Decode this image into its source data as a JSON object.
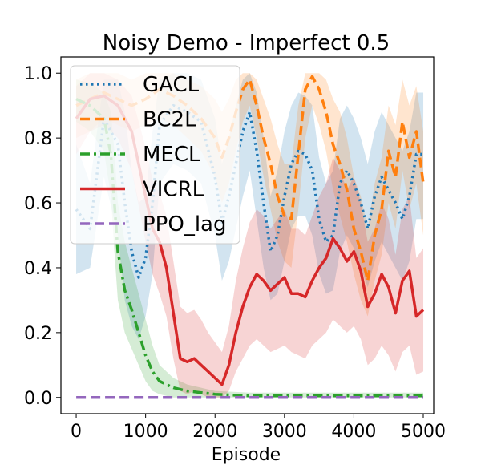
{
  "chart_data": {
    "type": "line",
    "title": "Noisy Demo - Imperfect 0.5",
    "xlabel": "Episode",
    "ylabel": "",
    "xlim": [
      -220,
      5150
    ],
    "ylim": [
      -0.05,
      1.05
    ],
    "xticks": [
      0,
      1000,
      2000,
      3000,
      4000,
      5000
    ],
    "yticks": [
      0.0,
      0.2,
      0.4,
      0.6,
      0.8,
      1.0
    ],
    "xtick_labels": [
      "0",
      "1000",
      "2000",
      "3000",
      "4000",
      "5000"
    ],
    "ytick_labels": [
      "0.0",
      "0.2",
      "0.4",
      "0.6",
      "0.8",
      "1.0"
    ],
    "grid": false,
    "legend_position": "top-left",
    "series": [
      {
        "name": "GACL",
        "color": "#1f77b4",
        "style": "dotted",
        "x": [
          0,
          200,
          400,
          600,
          700,
          800,
          900,
          1000,
          1100,
          1200,
          1400,
          1600,
          1800,
          2000,
          2100,
          2200,
          2300,
          2400,
          2500,
          2600,
          2700,
          2800,
          2900,
          3000,
          3100,
          3200,
          3300,
          3400,
          3500,
          3600,
          3700,
          3800,
          3900,
          4000,
          4100,
          4200,
          4300,
          4400,
          4500,
          4600,
          4700,
          4800,
          4900,
          5000
        ],
        "mean": [
          0.58,
          0.52,
          0.86,
          0.78,
          0.6,
          0.45,
          0.37,
          0.43,
          0.6,
          0.84,
          0.9,
          0.88,
          0.85,
          0.68,
          0.54,
          0.62,
          0.72,
          0.82,
          0.88,
          0.76,
          0.6,
          0.45,
          0.5,
          0.62,
          0.72,
          0.76,
          0.75,
          0.7,
          0.55,
          0.48,
          0.5,
          0.66,
          0.7,
          0.66,
          0.6,
          0.52,
          0.62,
          0.68,
          0.64,
          0.6,
          0.55,
          0.62,
          0.75,
          0.75
        ],
        "lower": [
          0.38,
          0.4,
          0.68,
          0.5,
          0.3,
          0.22,
          0.18,
          0.25,
          0.38,
          0.66,
          0.72,
          0.7,
          0.66,
          0.5,
          0.36,
          0.42,
          0.52,
          0.62,
          0.7,
          0.55,
          0.4,
          0.3,
          0.32,
          0.42,
          0.52,
          0.56,
          0.56,
          0.5,
          0.38,
          0.32,
          0.33,
          0.45,
          0.5,
          0.46,
          0.4,
          0.34,
          0.42,
          0.48,
          0.44,
          0.4,
          0.36,
          0.42,
          0.55,
          0.55
        ],
        "upper": [
          0.78,
          0.66,
          0.98,
          0.98,
          0.88,
          0.7,
          0.6,
          0.62,
          0.82,
          0.98,
          1.0,
          1.0,
          0.98,
          0.86,
          0.72,
          0.8,
          0.9,
          0.98,
          1.0,
          0.94,
          0.8,
          0.62,
          0.7,
          0.82,
          0.9,
          0.94,
          0.93,
          0.9,
          0.74,
          0.66,
          0.7,
          0.86,
          0.9,
          0.86,
          0.8,
          0.72,
          0.82,
          0.88,
          0.84,
          0.8,
          0.76,
          0.82,
          0.94,
          0.94
        ]
      },
      {
        "name": "BC2L",
        "color": "#ff7f0e",
        "style": "dashed",
        "x": [
          0,
          200,
          400,
          600,
          800,
          1000,
          1200,
          1400,
          1600,
          1800,
          2000,
          2100,
          2200,
          2300,
          2400,
          2500,
          2600,
          2700,
          2800,
          2900,
          3000,
          3100,
          3200,
          3300,
          3400,
          3500,
          3600,
          3700,
          3800,
          3900,
          4000,
          4100,
          4200,
          4300,
          4400,
          4500,
          4600,
          4700,
          4800,
          4900,
          5000
        ],
        "mean": [
          0.9,
          0.92,
          0.94,
          0.92,
          0.9,
          0.92,
          0.95,
          0.93,
          0.9,
          0.86,
          0.8,
          0.74,
          0.8,
          0.88,
          0.95,
          0.98,
          0.9,
          0.8,
          0.72,
          0.62,
          0.56,
          0.55,
          0.75,
          0.95,
          0.99,
          0.95,
          0.88,
          0.78,
          0.72,
          0.64,
          0.52,
          0.45,
          0.36,
          0.5,
          0.58,
          0.76,
          0.68,
          0.85,
          0.74,
          0.82,
          0.66
        ],
        "lower": [
          0.8,
          0.82,
          0.86,
          0.84,
          0.82,
          0.84,
          0.86,
          0.84,
          0.8,
          0.76,
          0.68,
          0.6,
          0.66,
          0.76,
          0.85,
          0.9,
          0.8,
          0.68,
          0.58,
          0.48,
          0.42,
          0.4,
          0.58,
          0.8,
          0.9,
          0.84,
          0.76,
          0.64,
          0.56,
          0.48,
          0.38,
          0.3,
          0.25,
          0.36,
          0.44,
          0.6,
          0.52,
          0.7,
          0.58,
          0.66,
          0.5
        ],
        "upper": [
          0.98,
          1.0,
          1.0,
          1.0,
          0.98,
          1.0,
          1.0,
          1.0,
          0.98,
          0.96,
          0.92,
          0.88,
          0.92,
          0.98,
          1.0,
          1.0,
          0.98,
          0.92,
          0.86,
          0.78,
          0.72,
          0.72,
          0.9,
          1.0,
          1.0,
          1.0,
          0.98,
          0.92,
          0.88,
          0.8,
          0.68,
          0.62,
          0.52,
          0.66,
          0.74,
          0.9,
          0.84,
          0.98,
          0.9,
          0.96,
          0.82
        ]
      },
      {
        "name": "MECL",
        "color": "#2ca02c",
        "style": "dashdot",
        "x": [
          0,
          200,
          400,
          500,
          550,
          600,
          700,
          800,
          900,
          1000,
          1100,
          1200,
          1300,
          1400,
          1600,
          1800,
          2000,
          2500,
          3000,
          3500,
          4000,
          4500,
          5000
        ],
        "mean": [
          0.92,
          0.9,
          0.86,
          0.75,
          0.6,
          0.45,
          0.33,
          0.27,
          0.2,
          0.13,
          0.08,
          0.05,
          0.04,
          0.03,
          0.02,
          0.015,
          0.01,
          0.005,
          0.005,
          0.005,
          0.005,
          0.005,
          0.005
        ],
        "lower": [
          0.85,
          0.82,
          0.76,
          0.62,
          0.45,
          0.3,
          0.2,
          0.15,
          0.1,
          0.05,
          0.02,
          0.01,
          0.005,
          0.0,
          0.0,
          0.0,
          0.0,
          0.0,
          0.0,
          0.0,
          0.0,
          0.0,
          0.0
        ],
        "upper": [
          0.98,
          0.97,
          0.94,
          0.88,
          0.76,
          0.6,
          0.48,
          0.4,
          0.32,
          0.24,
          0.16,
          0.1,
          0.08,
          0.06,
          0.04,
          0.03,
          0.02,
          0.015,
          0.015,
          0.015,
          0.015,
          0.015,
          0.015
        ]
      },
      {
        "name": "VICRL",
        "color": "#d62728",
        "style": "solid",
        "x": [
          0,
          200,
          400,
          600,
          800,
          1000,
          1100,
          1200,
          1300,
          1400,
          1500,
          1600,
          1700,
          1800,
          1900,
          2000,
          2100,
          2200,
          2300,
          2400,
          2500,
          2600,
          2700,
          2800,
          2900,
          3000,
          3100,
          3200,
          3300,
          3400,
          3500,
          3600,
          3700,
          3800,
          3900,
          4000,
          4100,
          4200,
          4300,
          4400,
          4500,
          4600,
          4700,
          4800,
          4900,
          5000
        ],
        "mean": [
          0.86,
          0.92,
          0.93,
          0.9,
          0.82,
          0.62,
          0.52,
          0.48,
          0.4,
          0.26,
          0.12,
          0.11,
          0.12,
          0.1,
          0.08,
          0.06,
          0.04,
          0.1,
          0.2,
          0.28,
          0.34,
          0.38,
          0.36,
          0.33,
          0.35,
          0.37,
          0.32,
          0.32,
          0.31,
          0.36,
          0.4,
          0.43,
          0.49,
          0.46,
          0.42,
          0.45,
          0.39,
          0.28,
          0.32,
          0.38,
          0.34,
          0.26,
          0.36,
          0.39,
          0.25,
          0.27
        ],
        "lower": [
          0.75,
          0.82,
          0.84,
          0.8,
          0.7,
          0.48,
          0.38,
          0.32,
          0.25,
          0.12,
          0.02,
          0.01,
          0.02,
          0.01,
          0.0,
          0.0,
          0.0,
          0.02,
          0.08,
          0.12,
          0.16,
          0.18,
          0.16,
          0.14,
          0.15,
          0.16,
          0.14,
          0.13,
          0.12,
          0.16,
          0.18,
          0.2,
          0.24,
          0.22,
          0.2,
          0.22,
          0.18,
          0.1,
          0.12,
          0.16,
          0.13,
          0.08,
          0.14,
          0.16,
          0.07,
          0.08
        ],
        "upper": [
          0.96,
          1.0,
          1.0,
          0.98,
          0.93,
          0.77,
          0.67,
          0.63,
          0.56,
          0.42,
          0.28,
          0.26,
          0.27,
          0.24,
          0.2,
          0.17,
          0.14,
          0.22,
          0.36,
          0.46,
          0.54,
          0.58,
          0.56,
          0.52,
          0.55,
          0.58,
          0.52,
          0.52,
          0.5,
          0.56,
          0.62,
          0.66,
          0.74,
          0.7,
          0.64,
          0.68,
          0.6,
          0.48,
          0.52,
          0.6,
          0.55,
          0.44,
          0.58,
          0.62,
          0.43,
          0.46
        ]
      },
      {
        "name": "PPO_lag",
        "color": "#9467bd",
        "style": "dashed",
        "x": [
          0,
          5000
        ],
        "mean": [
          0.0,
          0.0
        ],
        "lower": [
          0.0,
          0.0
        ],
        "upper": [
          0.0,
          0.0
        ]
      }
    ]
  }
}
